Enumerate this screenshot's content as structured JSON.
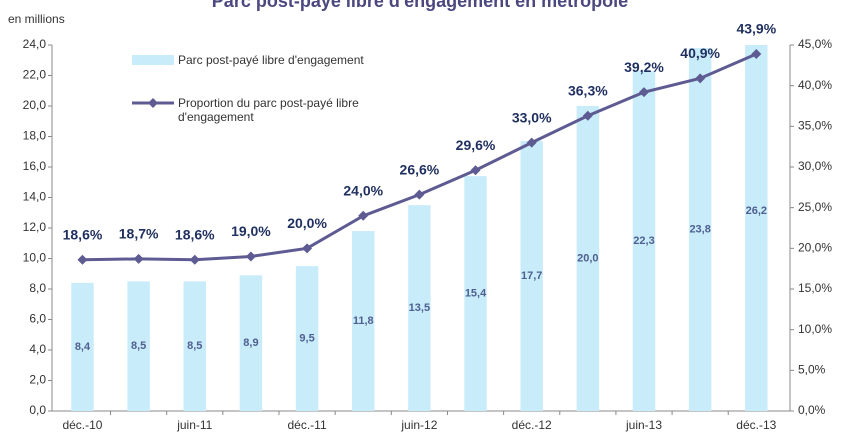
{
  "chart_data": {
    "type": "bar-line",
    "title": "Parc post-payé libre d'engagement en métropole",
    "y_axis_label": "en millions",
    "categories": [
      "déc.-10",
      null,
      "juin-11",
      null,
      "déc.-11",
      null,
      "juin-12",
      null,
      "déc.-12",
      null,
      "juin-13",
      null,
      "déc.-13"
    ],
    "series": [
      {
        "name": "Parc post-payé libre d'engagement",
        "type": "bar",
        "color": "#c9ecfb",
        "values": [
          8.4,
          8.5,
          8.5,
          8.9,
          9.5,
          11.8,
          13.5,
          15.4,
          17.7,
          20.0,
          22.3,
          23.8,
          26.2
        ],
        "value_labels": [
          "8,4",
          "8,5",
          "8,5",
          "8,9",
          "9,5",
          "11,8",
          "13,5",
          "15,4",
          "17,7",
          "20,0",
          "22,3",
          "23,8",
          "26,2"
        ]
      },
      {
        "name": "Proportion du parc post-payé libre d'engagement",
        "type": "line",
        "axis": "y2",
        "color": "#5e5b92",
        "values": [
          18.6,
          18.7,
          18.6,
          19.0,
          20.0,
          24.0,
          26.6,
          29.6,
          33.0,
          36.3,
          39.2,
          40.9,
          43.9
        ],
        "value_labels": [
          "18,6%",
          "18,7%",
          "18,6%",
          "19,0%",
          "20,0%",
          "24,0%",
          "26,6%",
          "29,6%",
          "33,0%",
          "36,3%",
          "39,2%",
          "40,9%",
          "43,9%"
        ]
      }
    ],
    "ylim": [
      0,
      24
    ],
    "yticks": [
      {
        "value": 0,
        "label": "0,0"
      },
      {
        "value": 2,
        "label": "2,0"
      },
      {
        "value": 4,
        "label": "4,0"
      },
      {
        "value": 6,
        "label": "6,0"
      },
      {
        "value": 8,
        "label": "8,0"
      },
      {
        "value": 10,
        "label": "10,0"
      },
      {
        "value": 12,
        "label": "12,0"
      },
      {
        "value": 14,
        "label": "14,0"
      },
      {
        "value": 16,
        "label": "16,0"
      },
      {
        "value": 18,
        "label": "18,0"
      },
      {
        "value": 20,
        "label": "20,0"
      },
      {
        "value": 22,
        "label": "22,0"
      },
      {
        "value": 24,
        "label": "24,0"
      }
    ],
    "y2lim": [
      0,
      45
    ],
    "y2ticks": [
      {
        "value": 0,
        "label": "0,0%"
      },
      {
        "value": 5,
        "label": "5,0%"
      },
      {
        "value": 10,
        "label": "10,0%"
      },
      {
        "value": 15,
        "label": "15,0%"
      },
      {
        "value": 20,
        "label": "20,0%"
      },
      {
        "value": 25,
        "label": "25,0%"
      },
      {
        "value": 30,
        "label": "30,0%"
      },
      {
        "value": 35,
        "label": "35,0%"
      },
      {
        "value": 40,
        "label": "40,0%"
      },
      {
        "value": 45,
        "label": "45,0%"
      }
    ],
    "grid": false
  }
}
